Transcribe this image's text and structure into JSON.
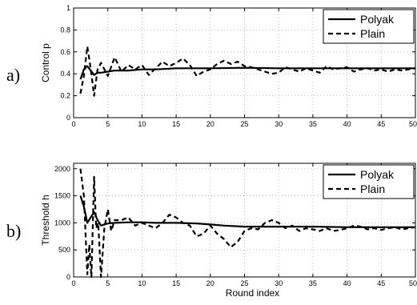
{
  "chart_data": [
    {
      "type": "line",
      "panel_label": "a)",
      "xlabel": "",
      "ylabel": "Control p",
      "xlim": [
        0,
        50
      ],
      "ylim": [
        0,
        1
      ],
      "xticks": [
        0,
        5,
        10,
        15,
        20,
        25,
        30,
        35,
        40,
        45,
        50
      ],
      "yticks": [
        0,
        0.2,
        0.4,
        0.6,
        0.8,
        1
      ],
      "ytick_labels": [
        "0",
        "0.2",
        "0.4",
        "0.6",
        "0.8",
        "1"
      ],
      "grid": true,
      "legend_position": "top-right",
      "series": [
        {
          "name": "Polyak",
          "style": "solid",
          "x": [
            1,
            1.5,
            2,
            2.5,
            3,
            3.5,
            4,
            5,
            6,
            8,
            10,
            12,
            15,
            20,
            25,
            30,
            35,
            40,
            45,
            50
          ],
          "y": [
            0.35,
            0.44,
            0.47,
            0.43,
            0.39,
            0.41,
            0.41,
            0.42,
            0.43,
            0.43,
            0.44,
            0.44,
            0.45,
            0.45,
            0.455,
            0.45,
            0.45,
            0.45,
            0.45,
            0.45
          ]
        },
        {
          "name": "Plain",
          "style": "dashed",
          "x": [
            1,
            1.5,
            2,
            2.5,
            3,
            3.5,
            4,
            5,
            6,
            7,
            8,
            9,
            10,
            11,
            12,
            13,
            14,
            15,
            16,
            17,
            18,
            19,
            20,
            21,
            22,
            23,
            24,
            25,
            26,
            27,
            28,
            29,
            30,
            31,
            32,
            33,
            34,
            35,
            36,
            37,
            38,
            39,
            40,
            41,
            42,
            43,
            44,
            45,
            46,
            47,
            48,
            49,
            50
          ],
          "y": [
            0.22,
            0.38,
            0.65,
            0.45,
            0.2,
            0.44,
            0.5,
            0.38,
            0.55,
            0.42,
            0.48,
            0.44,
            0.48,
            0.39,
            0.45,
            0.51,
            0.47,
            0.5,
            0.54,
            0.48,
            0.38,
            0.42,
            0.44,
            0.49,
            0.52,
            0.49,
            0.51,
            0.47,
            0.46,
            0.44,
            0.42,
            0.4,
            0.41,
            0.46,
            0.44,
            0.42,
            0.45,
            0.43,
            0.41,
            0.47,
            0.44,
            0.45,
            0.46,
            0.42,
            0.44,
            0.45,
            0.43,
            0.44,
            0.42,
            0.44,
            0.43,
            0.44,
            0.45
          ]
        }
      ]
    },
    {
      "type": "line",
      "panel_label": "b)",
      "xlabel": "Round index",
      "ylabel": "Threshold h",
      "xlim": [
        0,
        50
      ],
      "ylim": [
        0,
        2100
      ],
      "xticks": [
        0,
        5,
        10,
        15,
        20,
        25,
        30,
        35,
        40,
        45,
        50
      ],
      "yticks": [
        0,
        500,
        1000,
        1500,
        2000
      ],
      "ytick_labels": [
        "0",
        "500",
        "1000",
        "1500",
        "2000"
      ],
      "grid": true,
      "legend_position": "top-right",
      "series": [
        {
          "name": "Polyak",
          "style": "solid",
          "x": [
            1,
            1.5,
            2,
            2.5,
            3,
            3.5,
            4,
            5,
            6,
            8,
            10,
            12,
            15,
            18,
            20,
            22,
            25,
            30,
            35,
            40,
            45,
            50
          ],
          "y": [
            1500,
            1300,
            1000,
            1100,
            1200,
            1050,
            950,
            990,
            1000,
            1010,
            1010,
            1000,
            1000,
            990,
            970,
            950,
            930,
            930,
            930,
            920,
            920,
            920
          ]
        },
        {
          "name": "Plain",
          "style": "dashed",
          "x": [
            1,
            1.5,
            2,
            2.3,
            2.6,
            3,
            3.3,
            3.6,
            4,
            4.5,
            5,
            5.5,
            6,
            7,
            8,
            9,
            10,
            11,
            12,
            13,
            14,
            15,
            16,
            17,
            18,
            19,
            20,
            21,
            22,
            23,
            24,
            25,
            26,
            27,
            28,
            29,
            30,
            31,
            32,
            33,
            34,
            35,
            36,
            37,
            38,
            39,
            40,
            41,
            42,
            43,
            44,
            45,
            46,
            47,
            48,
            49,
            50
          ],
          "y": [
            2000,
            1500,
            50,
            600,
            0,
            1850,
            900,
            1000,
            0,
            900,
            1250,
            850,
            1050,
            1050,
            1100,
            950,
            1000,
            950,
            900,
            1000,
            1150,
            1100,
            1000,
            950,
            750,
            800,
            950,
            800,
            700,
            550,
            650,
            850,
            900,
            880,
            1000,
            1050,
            1000,
            900,
            950,
            850,
            900,
            880,
            850,
            900,
            850,
            870,
            900,
            950,
            930,
            880,
            900,
            870,
            900,
            920,
            880,
            900,
            920
          ]
        }
      ]
    }
  ]
}
